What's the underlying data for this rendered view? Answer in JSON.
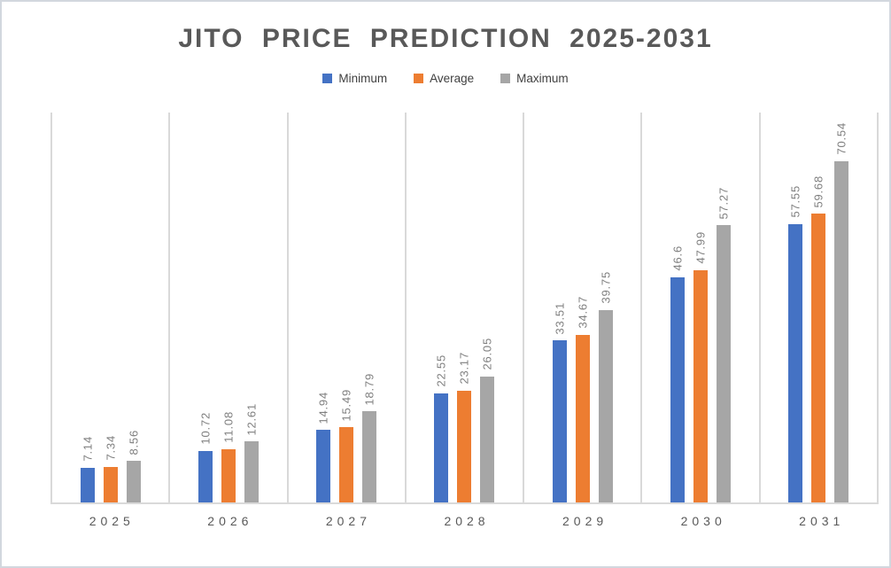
{
  "chart": {
    "title": "JITO PRICE PREDICTION 2025-2031"
  },
  "chart_data": {
    "type": "bar",
    "title": "JITO PRICE PREDICTION 2025-2031",
    "categories": [
      "2025",
      "2026",
      "2027",
      "2028",
      "2029",
      "2030",
      "2031"
    ],
    "series": [
      {
        "name": "Minimum",
        "color": "#4472c4",
        "values": [
          7.14,
          10.72,
          14.94,
          22.55,
          33.51,
          46.6,
          57.55
        ],
        "labels": [
          "7.14",
          "10.72",
          "14.94",
          "22.55",
          "33.51",
          "46.6",
          "57.55"
        ]
      },
      {
        "name": "Average",
        "color": "#ed7d31",
        "values": [
          7.34,
          11.08,
          15.49,
          23.17,
          34.67,
          47.99,
          59.68
        ],
        "labels": [
          "7.34",
          "11.08",
          "15.49",
          "23.17",
          "34.67",
          "47.99",
          "59.68"
        ]
      },
      {
        "name": "Maximum",
        "color": "#a6a6a6",
        "values": [
          8.56,
          12.61,
          18.79,
          26.05,
          39.75,
          57.27,
          70.54
        ],
        "labels": [
          "8.56",
          "12.61",
          "18.79",
          "26.05",
          "39.75",
          "57.27",
          "70.54"
        ]
      }
    ],
    "xlabel": "",
    "ylabel": "",
    "ylim": [
      0,
      80.6
    ],
    "y_axis_visible": false,
    "grid": "vertical category separators only",
    "legend_position": "top",
    "data_labels": "rotated 90 degrees above bars",
    "style": {
      "title_color": "#595959",
      "data_label_color": "#7f7f7f",
      "axis_label_color": "#595959",
      "gridline_color": "#d9d9d9",
      "background": "#ffffff",
      "frame_border_color": "#d2d7de"
    }
  }
}
